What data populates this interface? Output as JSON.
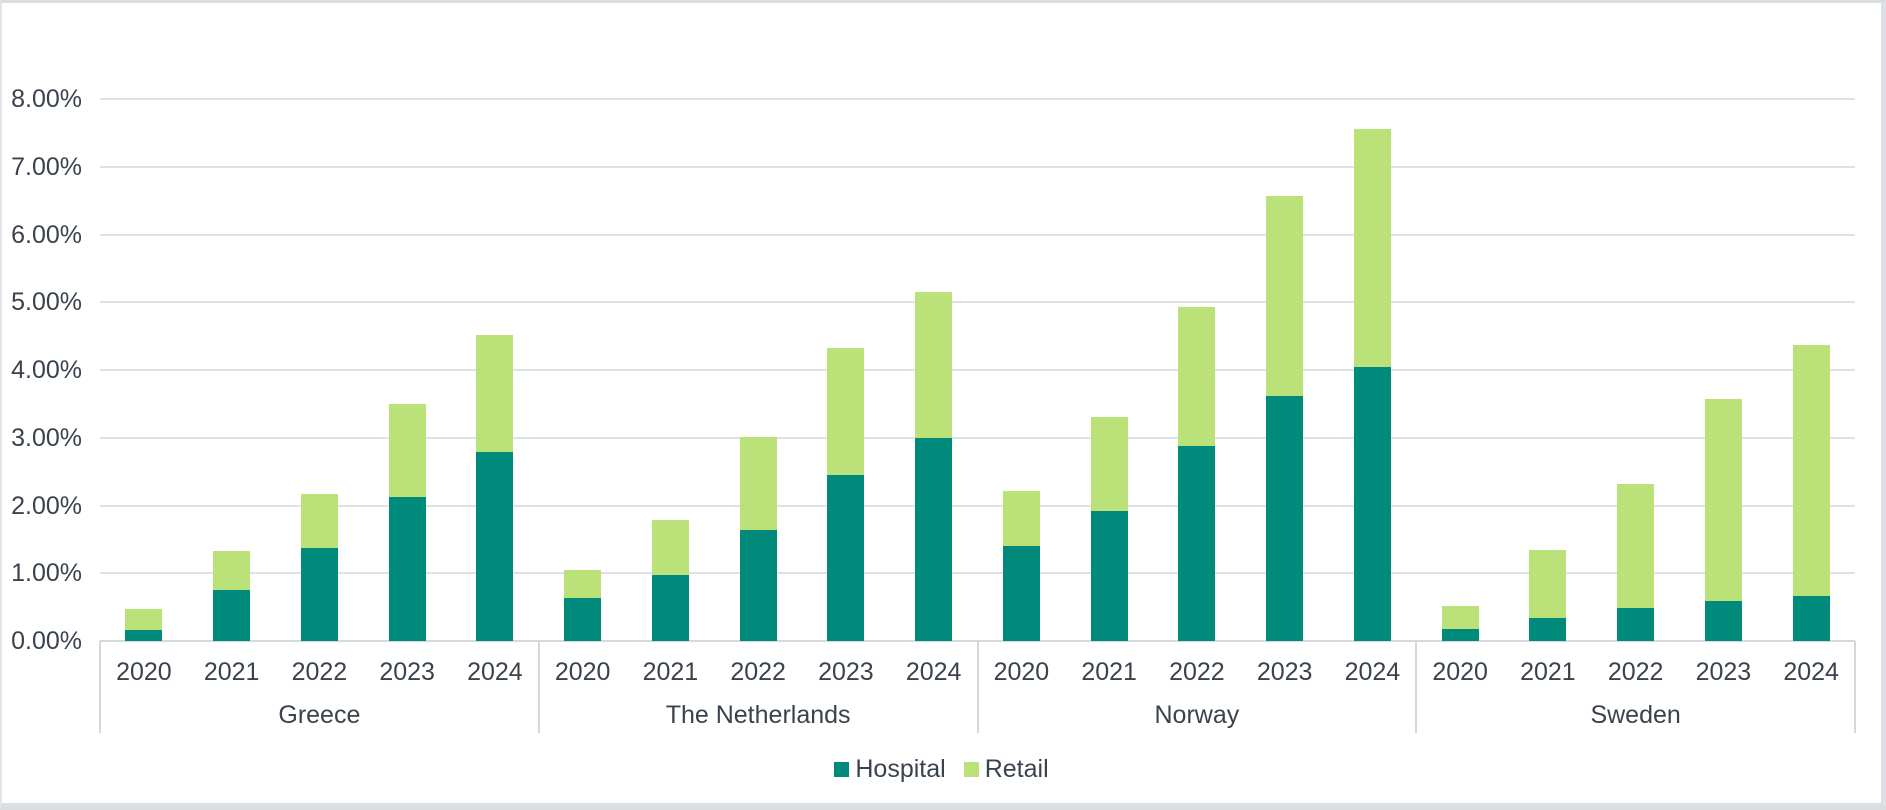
{
  "chart_data": {
    "type": "bar",
    "stacked": true,
    "title": "",
    "xlabel": "",
    "ylabel": "",
    "groups": [
      "Greece",
      "The Netherlands",
      "Norway",
      "Sweden"
    ],
    "years": [
      "2020",
      "2021",
      "2022",
      "2023",
      "2024"
    ],
    "series": [
      {
        "name": "Hospital",
        "color": "#008a7b",
        "values": [
          [
            0.16,
            0.76,
            1.37,
            2.13,
            2.79
          ],
          [
            0.64,
            0.97,
            1.64,
            2.45,
            2.99
          ],
          [
            1.4,
            1.92,
            2.88,
            3.61,
            4.04
          ],
          [
            0.18,
            0.34,
            0.48,
            0.59,
            0.67
          ]
        ]
      },
      {
        "name": "Retail",
        "color": "#bbe278",
        "values": [
          [
            0.31,
            0.57,
            0.8,
            1.37,
            1.72
          ],
          [
            0.41,
            0.82,
            1.37,
            1.88,
            2.16
          ],
          [
            0.82,
            1.38,
            2.05,
            2.96,
            3.51
          ],
          [
            0.33,
            1.0,
            1.84,
            2.98,
            3.7
          ]
        ]
      }
    ],
    "y_axis": {
      "min": 0,
      "max": 8,
      "step": 1,
      "format": "percent",
      "tick_labels": [
        "0.00%",
        "1.00%",
        "2.00%",
        "3.00%",
        "4.00%",
        "5.00%",
        "6.00%",
        "7.00%",
        "8.00%"
      ]
    },
    "grid": true,
    "legend_position": "bottom"
  },
  "legend": {
    "items": [
      {
        "label": "Hospital",
        "color": "#008a7b"
      },
      {
        "label": "Retail",
        "color": "#bbe278"
      }
    ]
  },
  "colors": {
    "hospital": "#008a7b",
    "retail": "#bbe278",
    "gridline": "#dde2e7",
    "separator": "#d2d8de",
    "text": "#3a434d",
    "frame_border": "#d9dee3"
  }
}
